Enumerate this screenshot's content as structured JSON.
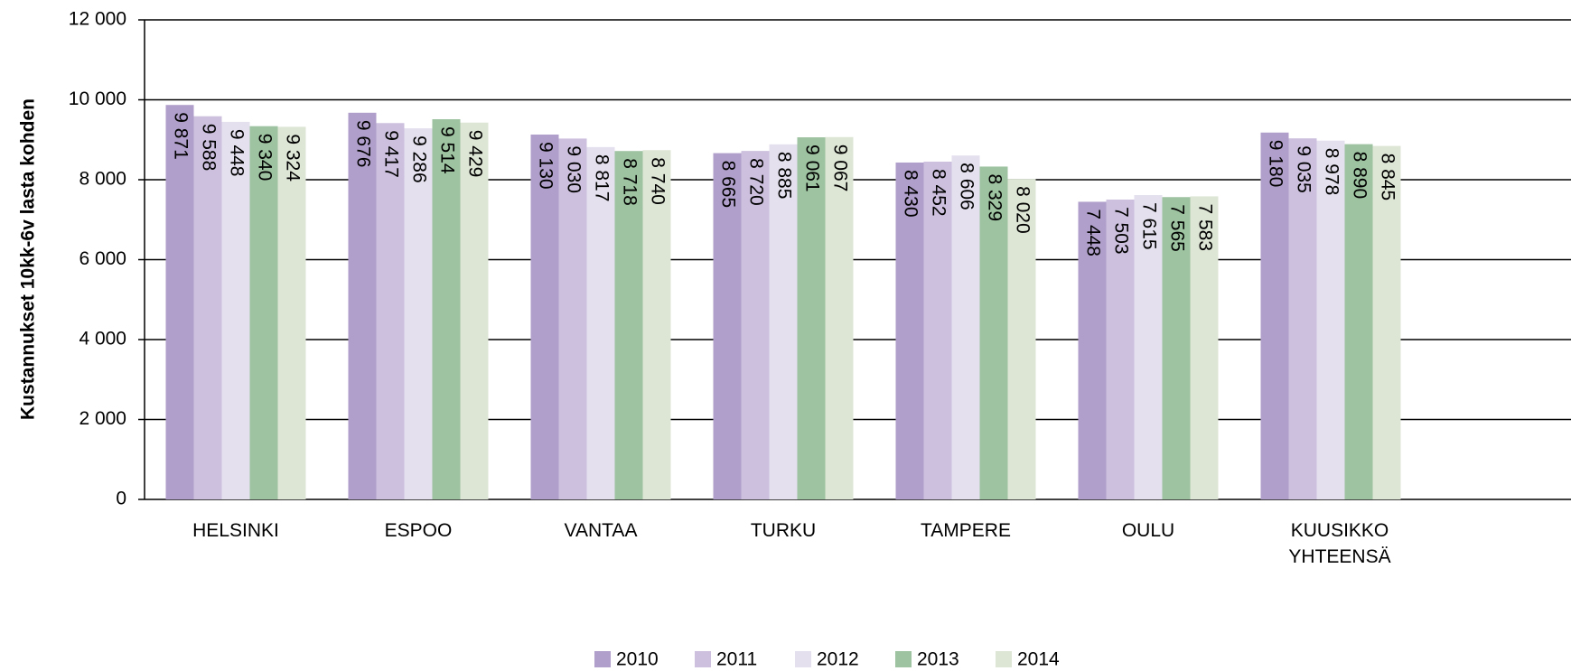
{
  "chart_data": {
    "type": "bar",
    "y_label": "Kustannukset 10kk-6v lasta kohden",
    "categories": [
      "HELSINKI",
      "ESPOO",
      "VANTAA",
      "TURKU",
      "TAMPERE",
      "OULU",
      "KUUSIKKO YHTEENSÄ"
    ],
    "series": [
      {
        "name": "2010",
        "color": "#b09fca",
        "values": [
          9871,
          9676,
          9130,
          8665,
          8430,
          7448,
          9180
        ],
        "value_labels": [
          "9 871",
          "9 676",
          "9 130",
          "8 665",
          "8 430",
          "7 448",
          "9 180"
        ]
      },
      {
        "name": "2011",
        "color": "#ccc0de",
        "values": [
          9588,
          9417,
          9030,
          8720,
          8452,
          7503,
          9035
        ],
        "value_labels": [
          "9 588",
          "9 417",
          "9 030",
          "8 720",
          "8 452",
          "7 503",
          "9 035"
        ]
      },
      {
        "name": "2012",
        "color": "#e4e0ee",
        "values": [
          9448,
          9286,
          8817,
          8885,
          8606,
          7615,
          8978
        ],
        "value_labels": [
          "9 448",
          "9 286",
          "8 817",
          "8 885",
          "8 606",
          "7 615",
          "8 978"
        ]
      },
      {
        "name": "2013",
        "color": "#9dc3a0",
        "values": [
          9340,
          9514,
          8718,
          9061,
          8329,
          7565,
          8890
        ],
        "value_labels": [
          "9 340",
          "9 514",
          "8 718",
          "9 061",
          "8 329",
          "7 565",
          "8 890"
        ]
      },
      {
        "name": "2014",
        "color": "#dde5d5",
        "values": [
          9324,
          9429,
          8740,
          9067,
          8020,
          7583,
          8845
        ],
        "value_labels": [
          "9 324",
          "9 429",
          "8 740",
          "9 067",
          "8 020",
          "7 583",
          "8 845"
        ]
      }
    ],
    "ylim": [
      0,
      12000
    ],
    "yticks": [
      0,
      {
        "value": 2000,
        "label": "2 000"
      },
      {
        "value": 4000,
        "label": "4 000"
      },
      {
        "value": 6000,
        "label": "6 000"
      },
      {
        "value": 8000,
        "label": "8 000"
      },
      {
        "value": 10000,
        "label": "10 000"
      },
      {
        "value": 12000,
        "label": "12 000"
      }
    ],
    "grid": true,
    "legend": "bottom"
  }
}
